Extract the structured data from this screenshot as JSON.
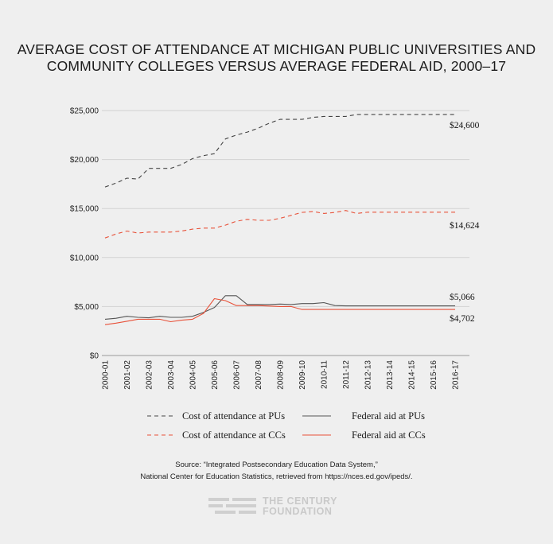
{
  "chart_data": {
    "type": "line",
    "title_lines": [
      "AVERAGE COST OF ATTENDANCE AT MICHIGAN PUBLIC UNIVERSITIES AND",
      "COMMUNITY COLLEGES VERSUS AVERAGE FEDERAL AID, 2000–17"
    ],
    "categories": [
      "2000-01",
      "2001-02",
      "2002-03",
      "2003-04",
      "2004-05",
      "2005-06",
      "2006-07",
      "2007-08",
      "2008-09",
      "2009-10",
      "2010-11",
      "2011-12",
      "2012-13",
      "2013-14",
      "2014-15",
      "2015-16",
      "2016-17"
    ],
    "x": [
      0,
      0.5,
      1,
      1.5,
      2,
      2.5,
      3,
      3.5,
      4,
      4.5,
      5,
      5.5,
      6,
      6.5,
      7,
      7.5,
      8,
      8.5,
      9,
      9.5,
      10,
      10.5,
      11,
      11.5,
      12,
      12.5,
      13,
      13.5,
      14,
      14.5,
      15,
      15.5,
      16
    ],
    "ylim": [
      0,
      25000
    ],
    "yticks": [
      0,
      5000,
      10000,
      15000,
      20000,
      25000
    ],
    "ytick_labels": [
      "$0",
      "$5,000",
      "$10,000",
      "$15,000",
      "$20,000",
      "$25,000"
    ],
    "grid": "horizontal",
    "legend_position": "bottom",
    "series": [
      {
        "name": "Cost of attendance at PUs",
        "color": "#444444",
        "dash": "dashed",
        "values": [
          17200,
          17600,
          18100,
          18000,
          19100,
          19100,
          19100,
          19500,
          20100,
          20400,
          20600,
          22100,
          22500,
          22800,
          23200,
          23700,
          24100,
          24100,
          24100,
          24300,
          24400,
          24400,
          24400,
          24600,
          24600,
          24600,
          24600,
          24600,
          24600,
          24600,
          24600,
          24600,
          24600
        ],
        "end_label": "$24,600"
      },
      {
        "name": "Cost of attendance at CCs",
        "color": "#e8523a",
        "dash": "dashed",
        "values": [
          12000,
          12400,
          12700,
          12500,
          12600,
          12600,
          12600,
          12700,
          12900,
          13000,
          13000,
          13300,
          13700,
          13900,
          13800,
          13800,
          14000,
          14300,
          14600,
          14700,
          14500,
          14600,
          14800,
          14500,
          14624,
          14624,
          14624,
          14624,
          14624,
          14624,
          14624,
          14624,
          14624
        ],
        "end_label": "$14,624"
      },
      {
        "name": "Federal aid at PUs",
        "color": "#555555",
        "dash": "solid",
        "values": [
          3700,
          3800,
          4000,
          3900,
          3850,
          4000,
          3900,
          3900,
          4000,
          4400,
          4900,
          6100,
          6100,
          5200,
          5200,
          5200,
          5250,
          5200,
          5300,
          5300,
          5400,
          5100,
          5066,
          5066,
          5066,
          5066,
          5066,
          5066,
          5066,
          5066,
          5066,
          5066,
          5066
        ],
        "end_label": "$5,066"
      },
      {
        "name": "Federal aid at CCs",
        "color": "#e8523a",
        "dash": "solid",
        "values": [
          3150,
          3300,
          3500,
          3700,
          3700,
          3700,
          3450,
          3600,
          3700,
          4300,
          5800,
          5600,
          5100,
          5100,
          5100,
          5050,
          5000,
          5000,
          4702,
          4702,
          4702,
          4702,
          4702,
          4702,
          4702,
          4702,
          4702,
          4702,
          4702,
          4702,
          4702,
          4702,
          4702
        ],
        "end_label": "$4,702"
      }
    ],
    "source_lines": [
      "Source: “Integrated Postsecondary Education Data System,”",
      "National Center for Education Statistics, retrieved from https://nces.ed.gov/ipeds/."
    ]
  },
  "logo": {
    "line1": "THE CENTURY",
    "line2": "FOUNDATION"
  }
}
